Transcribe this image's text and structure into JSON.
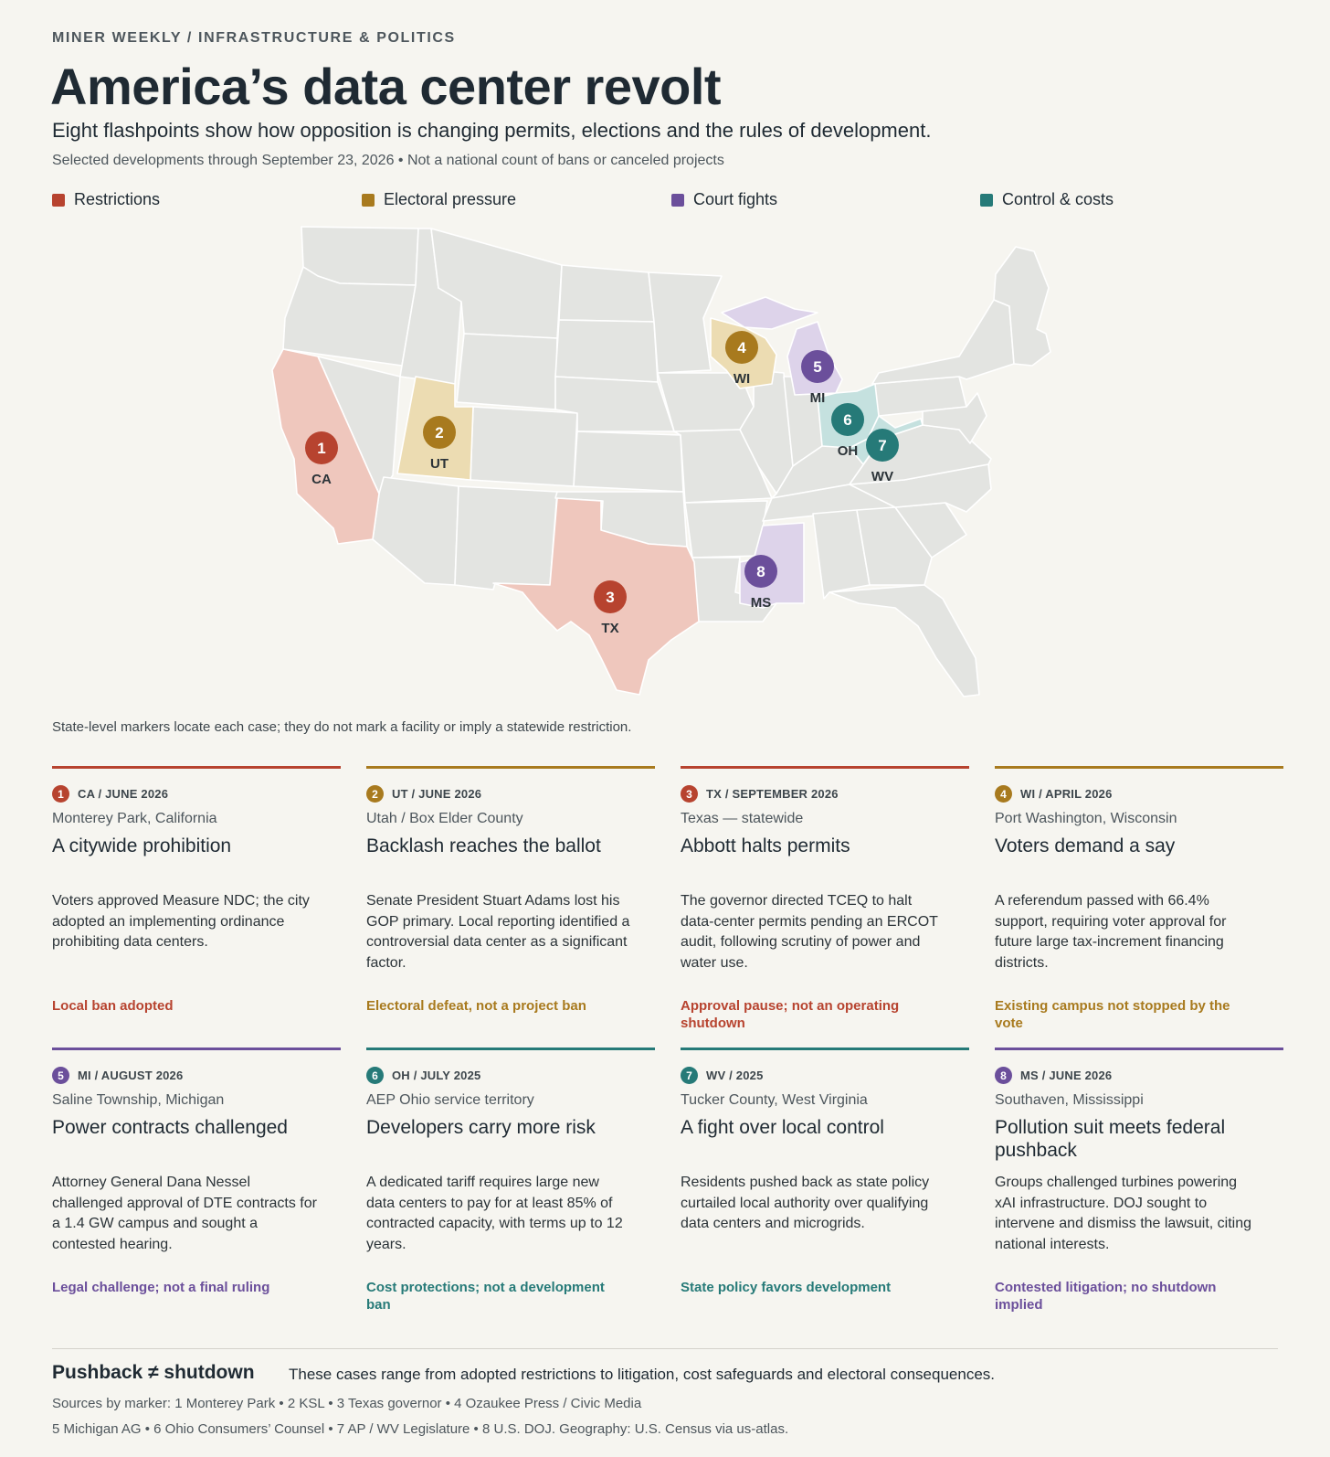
{
  "header": {
    "kicker": "MINER WEEKLY / INFRASTRUCTURE & POLITICS",
    "title": "America’s data center revolt",
    "subtitle": "Eight flashpoints show how opposition is changing permits, elections and the rules of development.",
    "note": "Selected developments through September 23, 2026 • Not a national count of bans or canceled projects"
  },
  "legend": [
    {
      "label": "Restrictions",
      "color": "#b7432f"
    },
    {
      "label": "Electoral pressure",
      "color": "#a87a1e"
    },
    {
      "label": "Court fights",
      "color": "#6b4f9b"
    },
    {
      "label": "Control & costs",
      "color": "#267a78"
    }
  ],
  "map": {
    "caption": "State-level markers locate each case; they do not mark a facility or imply a statewide restriction.",
    "markers": [
      {
        "num": "1",
        "abbr": "CA",
        "category": "restrictions"
      },
      {
        "num": "2",
        "abbr": "UT",
        "category": "electoral"
      },
      {
        "num": "3",
        "abbr": "TX",
        "category": "restrictions"
      },
      {
        "num": "4",
        "abbr": "WI",
        "category": "electoral"
      },
      {
        "num": "5",
        "abbr": "MI",
        "category": "court"
      },
      {
        "num": "6",
        "abbr": "OH",
        "category": "control"
      },
      {
        "num": "7",
        "abbr": "WV",
        "category": "control"
      },
      {
        "num": "8",
        "abbr": "MS",
        "category": "court"
      }
    ]
  },
  "cards": [
    {
      "num": "1",
      "category": "restrictions",
      "tag": "CA / JUNE 2026",
      "place": "Monterey Park, California",
      "headline": "A citywide prohibition",
      "body": "Voters approved Measure NDC; the city adopted an implementing ordinance prohibiting data centers.",
      "outcome": "Local ban adopted"
    },
    {
      "num": "2",
      "category": "electoral",
      "tag": "UT / JUNE 2026",
      "place": "Utah / Box Elder County",
      "headline": "Backlash reaches the ballot",
      "body": "Senate President Stuart Adams lost his GOP primary. Local reporting identified a controversial data center as a significant factor.",
      "outcome": "Electoral defeat, not a project ban"
    },
    {
      "num": "3",
      "category": "restrictions",
      "tag": "TX / SEPTEMBER 2026",
      "place": "Texas — statewide",
      "headline": "Abbott halts permits",
      "body": "The governor directed TCEQ to halt data-center permits pending an ERCOT audit, following scrutiny of power and water use.",
      "outcome": "Approval pause; not an operating shutdown"
    },
    {
      "num": "4",
      "category": "electoral",
      "tag": "WI / APRIL 2026",
      "place": "Port Washington, Wisconsin",
      "headline": "Voters demand a say",
      "body": "A referendum passed with 66.4% support, requiring voter approval for future large tax-increment financing districts.",
      "outcome": "Existing campus not stopped by the vote"
    },
    {
      "num": "5",
      "category": "court",
      "tag": "MI / AUGUST 2026",
      "place": "Saline Township, Michigan",
      "headline": "Power contracts challenged",
      "body": "Attorney General Dana Nessel challenged approval of DTE contracts for a 1.4 GW campus and sought a contested hearing.",
      "outcome": "Legal challenge; not a final ruling"
    },
    {
      "num": "6",
      "category": "control",
      "tag": "OH / JULY 2025",
      "place": "AEP Ohio service territory",
      "headline": "Developers carry more risk",
      "body": "A dedicated tariff requires large new data centers to pay for at least 85% of contracted capacity, with terms up to 12 years.",
      "outcome": "Cost protections; not a development ban"
    },
    {
      "num": "7",
      "category": "control",
      "tag": "WV / 2025",
      "place": "Tucker County, West Virginia",
      "headline": "A fight over local control",
      "body": "Residents pushed back as state policy curtailed local authority over qualifying data centers and microgrids.",
      "outcome": "State policy favors development"
    },
    {
      "num": "8",
      "category": "court",
      "tag": "MS / JUNE 2026",
      "place": "Southaven, Mississippi",
      "headline": "Pollution suit meets federal pushback",
      "body": "Groups challenged turbines powering xAI infrastructure. DOJ sought to intervene and dismiss the lawsuit, citing national interests.",
      "outcome": "Contested litigation; no shutdown implied"
    }
  ],
  "categories": {
    "restrictions": {
      "color": "#b7432f",
      "fill": "#efc7bd"
    },
    "electoral": {
      "color": "#a87a1e",
      "fill": "#ecdcb2"
    },
    "court": {
      "color": "#6b4f9b",
      "fill": "#ddd3ea"
    },
    "control": {
      "color": "#267a78",
      "fill": "#c5e1df"
    }
  },
  "footer": {
    "heading": "Pushback ≠ shutdown",
    "text": "These cases range from adopted restrictions to litigation, cost safeguards and electoral consequences.",
    "sources_line1": "Sources by marker: 1 Monterey Park • 2 KSL • 3 Texas governor • 4 Ozaukee Press / Civic Media",
    "sources_line2": "5 Michigan AG • 6 Ohio Consumers’ Counsel • 7 AP / WV Legislature • 8 U.S. DOJ. Geography: U.S. Census via us-atlas."
  }
}
